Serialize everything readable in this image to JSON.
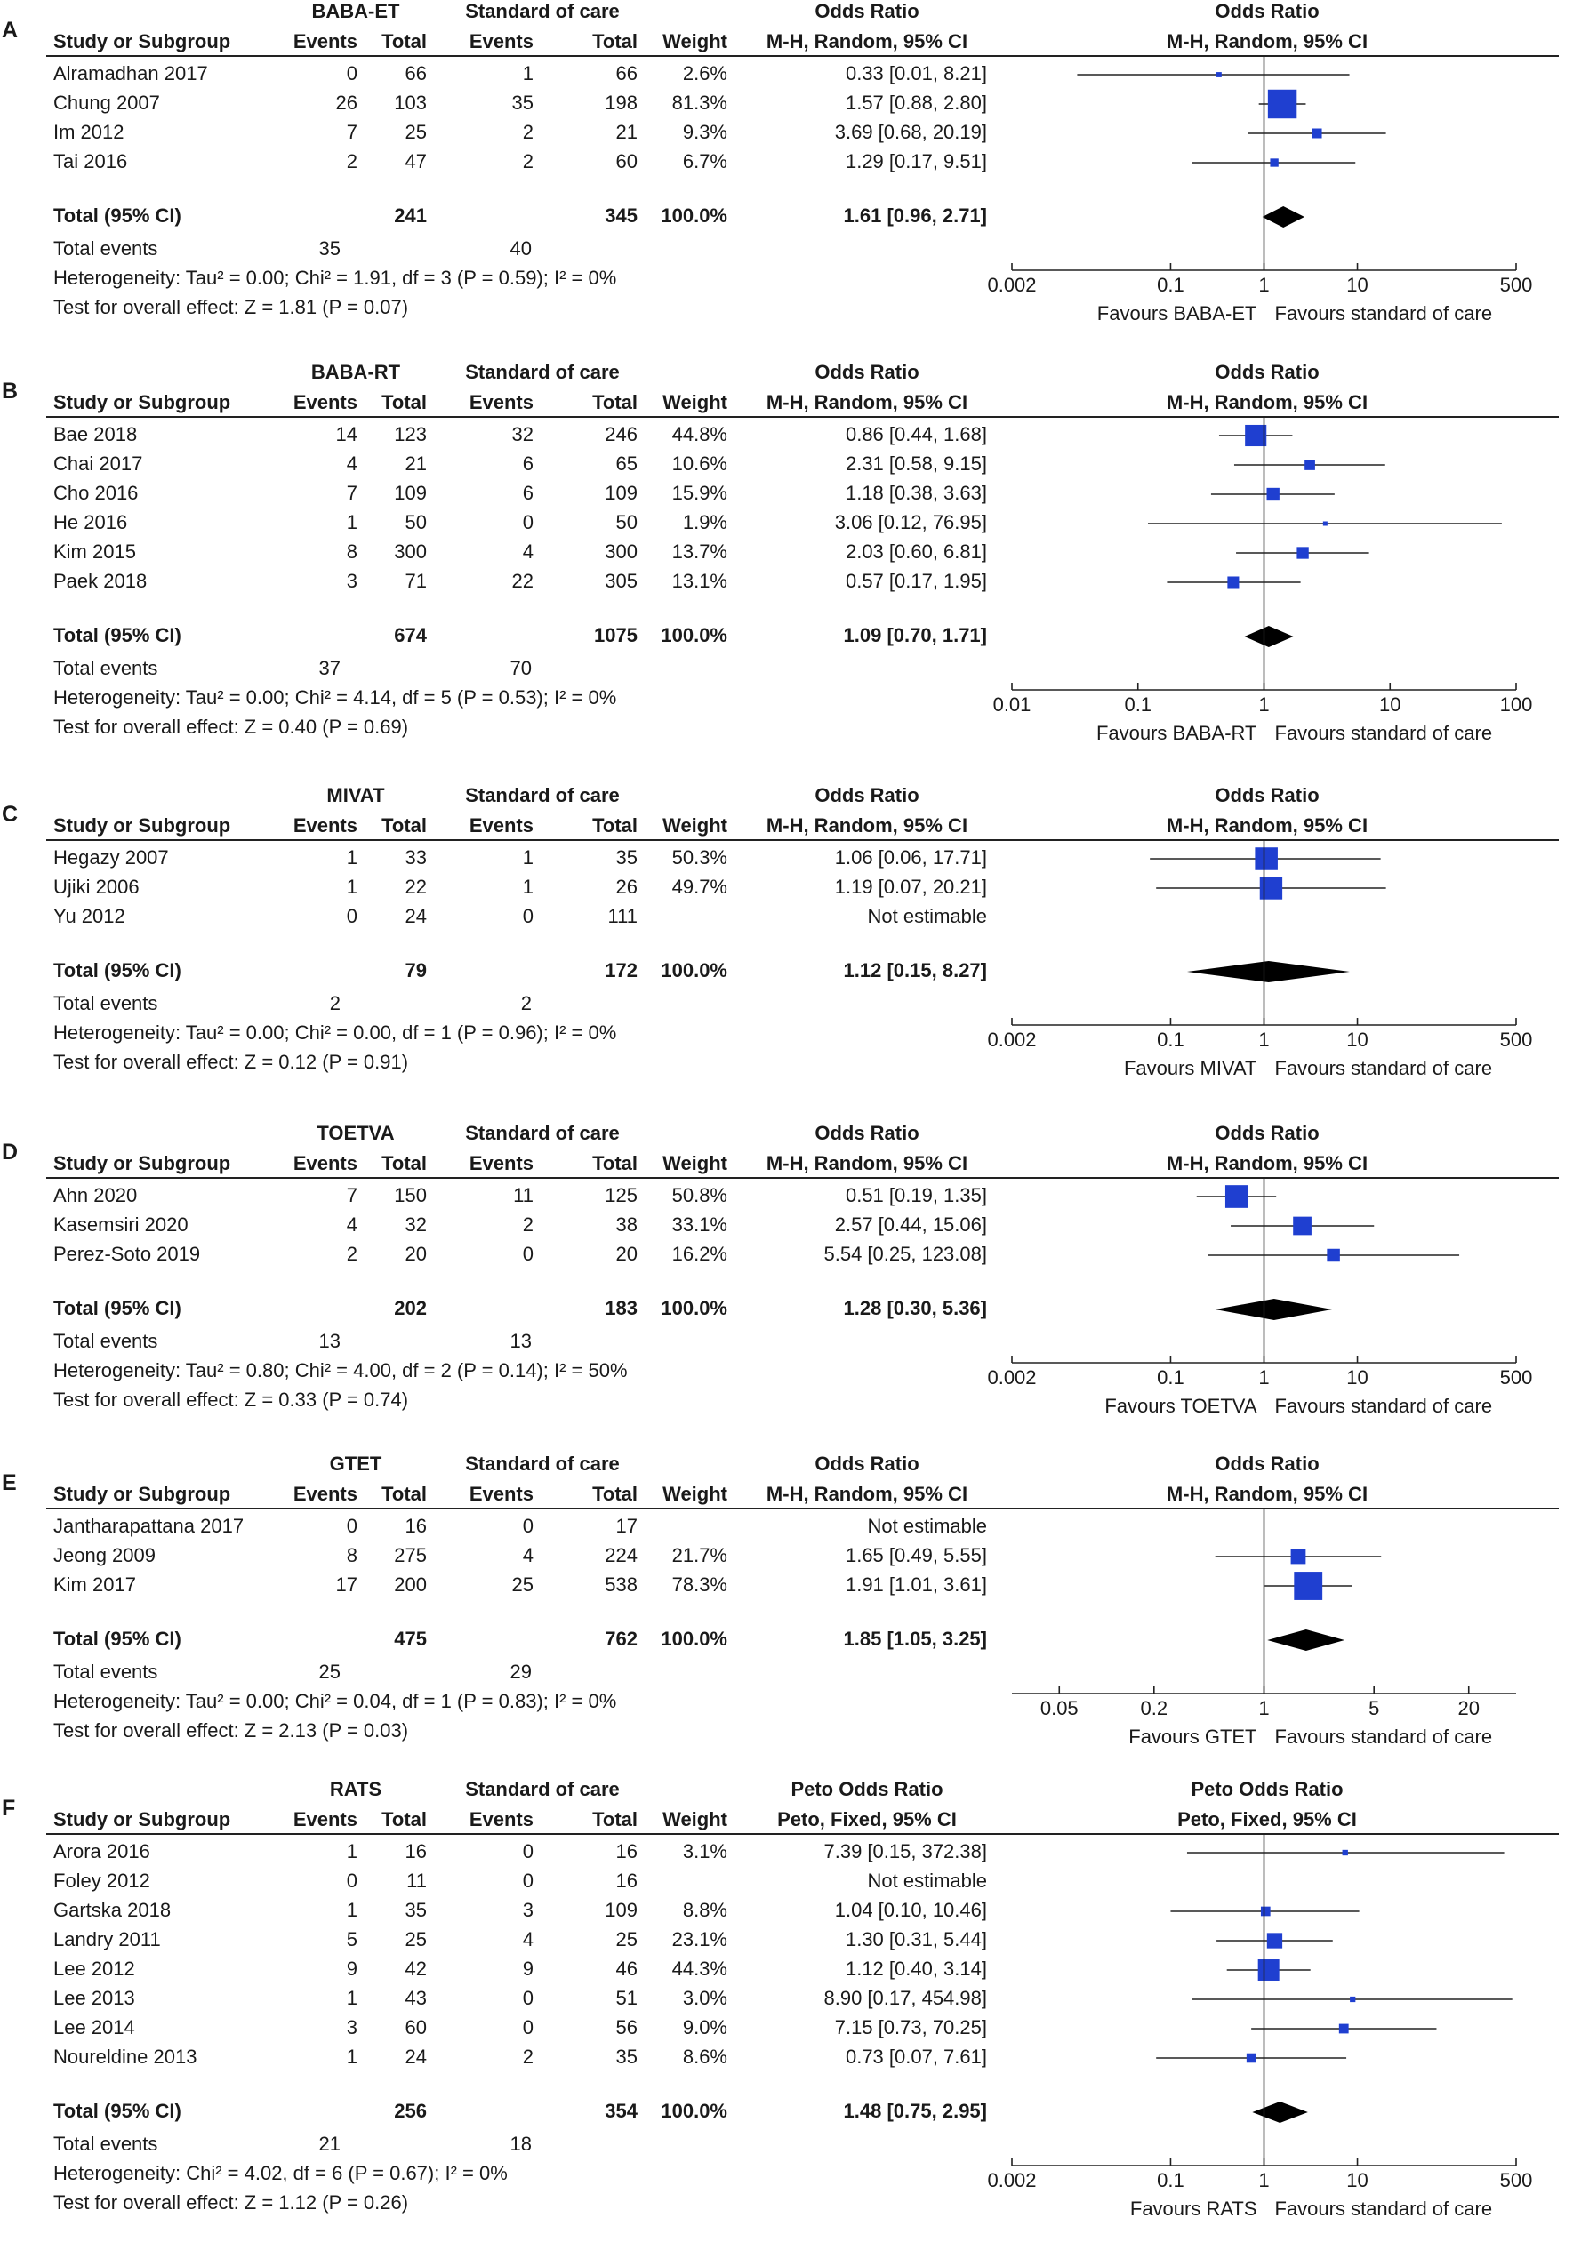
{
  "chart_data": [
    {
      "type": "forest",
      "panel": "A",
      "experimental_label": "BABA-ET",
      "control_label": "Standard of care",
      "effect_header": "Odds Ratio",
      "method": "M-H, Random, 95% CI",
      "columns": {
        "study": "Study or Subgroup",
        "events": "Events",
        "total": "Total",
        "weight": "Weight"
      },
      "studies": [
        {
          "name": "Alramadhan 2017",
          "e_events": "0",
          "e_total": "66",
          "c_events": "1",
          "c_total": "66",
          "weight": "2.6%",
          "ci_text": "0.33 [0.01, 8.21]",
          "or": 0.33,
          "lo": 0.01,
          "hi": 8.21,
          "w": 2.6
        },
        {
          "name": "Chung 2007",
          "e_events": "26",
          "e_total": "103",
          "c_events": "35",
          "c_total": "198",
          "weight": "81.3%",
          "ci_text": "1.57 [0.88, 2.80]",
          "or": 1.57,
          "lo": 0.88,
          "hi": 2.8,
          "w": 81.3
        },
        {
          "name": "Im 2012",
          "e_events": "7",
          "e_total": "25",
          "c_events": "2",
          "c_total": "21",
          "weight": "9.3%",
          "ci_text": "3.69 [0.68, 20.19]",
          "or": 3.69,
          "lo": 0.68,
          "hi": 20.19,
          "w": 9.3
        },
        {
          "name": "Tai 2016",
          "e_events": "2",
          "e_total": "47",
          "c_events": "2",
          "c_total": "60",
          "weight": "6.7%",
          "ci_text": "1.29 [0.17, 9.51]",
          "or": 1.29,
          "lo": 0.17,
          "hi": 9.51,
          "w": 6.7
        }
      ],
      "total": {
        "label": "Total (95% CI)",
        "e_total": "241",
        "c_total": "345",
        "weight": "100.0%",
        "ci_text": "1.61 [0.96, 2.71]",
        "or": 1.61,
        "lo": 0.96,
        "hi": 2.71
      },
      "total_events": {
        "label": "Total events",
        "e": "35",
        "c": "40"
      },
      "heterogeneity": "Heterogeneity: Tau² = 0.00; Chi² = 1.91, df = 3 (P = 0.59); I² = 0%",
      "overall": "Test for overall effect: Z = 1.81 (P = 0.07)",
      "axis": {
        "min": 0.002,
        "max": 500,
        "ticks": [
          "0.002",
          "0.1",
          "1",
          "10",
          "500"
        ]
      },
      "favours_left": "Favours BABA-ET",
      "favours_right": "Favours standard of care"
    },
    {
      "type": "forest",
      "panel": "B",
      "experimental_label": "BABA-RT",
      "control_label": "Standard of care",
      "effect_header": "Odds Ratio",
      "method": "M-H, Random, 95% CI",
      "columns": {
        "study": "Study or Subgroup",
        "events": "Events",
        "total": "Total",
        "weight": "Weight"
      },
      "studies": [
        {
          "name": "Bae 2018",
          "e_events": "14",
          "e_total": "123",
          "c_events": "32",
          "c_total": "246",
          "weight": "44.8%",
          "ci_text": "0.86 [0.44, 1.68]",
          "or": 0.86,
          "lo": 0.44,
          "hi": 1.68,
          "w": 44.8
        },
        {
          "name": "Chai 2017",
          "e_events": "4",
          "e_total": "21",
          "c_events": "6",
          "c_total": "65",
          "weight": "10.6%",
          "ci_text": "2.31 [0.58, 9.15]",
          "or": 2.31,
          "lo": 0.58,
          "hi": 9.15,
          "w": 10.6
        },
        {
          "name": "Cho 2016",
          "e_events": "7",
          "e_total": "109",
          "c_events": "6",
          "c_total": "109",
          "weight": "15.9%",
          "ci_text": "1.18 [0.38, 3.63]",
          "or": 1.18,
          "lo": 0.38,
          "hi": 3.63,
          "w": 15.9
        },
        {
          "name": "He 2016",
          "e_events": "1",
          "e_total": "50",
          "c_events": "0",
          "c_total": "50",
          "weight": "1.9%",
          "ci_text": "3.06 [0.12, 76.95]",
          "or": 3.06,
          "lo": 0.12,
          "hi": 76.95,
          "w": 1.9
        },
        {
          "name": "Kim 2015",
          "e_events": "8",
          "e_total": "300",
          "c_events": "4",
          "c_total": "300",
          "weight": "13.7%",
          "ci_text": "2.03 [0.60, 6.81]",
          "or": 2.03,
          "lo": 0.6,
          "hi": 6.81,
          "w": 13.7
        },
        {
          "name": "Paek 2018",
          "e_events": "3",
          "e_total": "71",
          "c_events": "22",
          "c_total": "305",
          "weight": "13.1%",
          "ci_text": "0.57 [0.17, 1.95]",
          "or": 0.57,
          "lo": 0.17,
          "hi": 1.95,
          "w": 13.1
        }
      ],
      "total": {
        "label": "Total (95% CI)",
        "e_total": "674",
        "c_total": "1075",
        "weight": "100.0%",
        "ci_text": "1.09 [0.70, 1.71]",
        "or": 1.09,
        "lo": 0.7,
        "hi": 1.71
      },
      "total_events": {
        "label": "Total events",
        "e": "37",
        "c": "70"
      },
      "heterogeneity": "Heterogeneity: Tau² = 0.00; Chi² = 4.14, df = 5 (P = 0.53); I² = 0%",
      "overall": "Test for overall effect: Z = 0.40 (P = 0.69)",
      "axis": {
        "min": 0.01,
        "max": 100,
        "ticks": [
          "0.01",
          "0.1",
          "1",
          "10",
          "100"
        ]
      },
      "favours_left": "Favours BABA-RT",
      "favours_right": "Favours standard of care"
    },
    {
      "type": "forest",
      "panel": "C",
      "experimental_label": "MIVAT",
      "control_label": "Standard of care",
      "effect_header": "Odds Ratio",
      "method": "M-H, Random, 95% CI",
      "columns": {
        "study": "Study or Subgroup",
        "events": "Events",
        "total": "Total",
        "weight": "Weight"
      },
      "studies": [
        {
          "name": "Hegazy 2007",
          "e_events": "1",
          "e_total": "33",
          "c_events": "1",
          "c_total": "35",
          "weight": "50.3%",
          "ci_text": "1.06 [0.06, 17.71]",
          "or": 1.06,
          "lo": 0.06,
          "hi": 17.71,
          "w": 50.3
        },
        {
          "name": "Ujiki 2006",
          "e_events": "1",
          "e_total": "22",
          "c_events": "1",
          "c_total": "26",
          "weight": "49.7%",
          "ci_text": "1.19 [0.07, 20.21]",
          "or": 1.19,
          "lo": 0.07,
          "hi": 20.21,
          "w": 49.7
        },
        {
          "name": "Yu 2012",
          "e_events": "0",
          "e_total": "24",
          "c_events": "0",
          "c_total": "111",
          "weight": "",
          "ci_text": "Not estimable",
          "or": null,
          "lo": null,
          "hi": null,
          "w": 0
        }
      ],
      "total": {
        "label": "Total (95% CI)",
        "e_total": "79",
        "c_total": "172",
        "weight": "100.0%",
        "ci_text": "1.12 [0.15, 8.27]",
        "or": 1.12,
        "lo": 0.15,
        "hi": 8.27
      },
      "total_events": {
        "label": "Total events",
        "e": "2",
        "c": "2"
      },
      "heterogeneity": "Heterogeneity: Tau² = 0.00; Chi² = 0.00, df = 1 (P = 0.96); I² = 0%",
      "overall": "Test for overall effect: Z = 0.12 (P = 0.91)",
      "axis": {
        "min": 0.002,
        "max": 500,
        "ticks": [
          "0.002",
          "0.1",
          "1",
          "10",
          "500"
        ]
      },
      "favours_left": "Favours MIVAT",
      "favours_right": "Favours standard of care"
    },
    {
      "type": "forest",
      "panel": "D",
      "experimental_label": "TOETVA",
      "control_label": "Standard of care",
      "effect_header": "Odds Ratio",
      "method": "M-H, Random, 95% CI",
      "columns": {
        "study": "Study or Subgroup",
        "events": "Events",
        "total": "Total",
        "weight": "Weight"
      },
      "studies": [
        {
          "name": "Ahn 2020",
          "e_events": "7",
          "e_total": "150",
          "c_events": "11",
          "c_total": "125",
          "weight": "50.8%",
          "ci_text": "0.51 [0.19, 1.35]",
          "or": 0.51,
          "lo": 0.19,
          "hi": 1.35,
          "w": 50.8
        },
        {
          "name": "Kasemsiri 2020",
          "e_events": "4",
          "e_total": "32",
          "c_events": "2",
          "c_total": "38",
          "weight": "33.1%",
          "ci_text": "2.57 [0.44, 15.06]",
          "or": 2.57,
          "lo": 0.44,
          "hi": 15.06,
          "w": 33.1
        },
        {
          "name": "Perez-Soto 2019",
          "e_events": "2",
          "e_total": "20",
          "c_events": "0",
          "c_total": "20",
          "weight": "16.2%",
          "ci_text": "5.54 [0.25, 123.08]",
          "or": 5.54,
          "lo": 0.25,
          "hi": 123.08,
          "w": 16.2
        }
      ],
      "total": {
        "label": "Total (95% CI)",
        "e_total": "202",
        "c_total": "183",
        "weight": "100.0%",
        "ci_text": "1.28 [0.30, 5.36]",
        "or": 1.28,
        "lo": 0.3,
        "hi": 5.36
      },
      "total_events": {
        "label": "Total events",
        "e": "13",
        "c": "13"
      },
      "heterogeneity": "Heterogeneity: Tau² = 0.80; Chi² = 4.00, df = 2 (P = 0.14); I² = 50%",
      "overall": "Test for overall effect: Z = 0.33 (P = 0.74)",
      "axis": {
        "min": 0.002,
        "max": 500,
        "ticks": [
          "0.002",
          "0.1",
          "1",
          "10",
          "500"
        ]
      },
      "favours_left": "Favours TOETVA",
      "favours_right": "Favours standard of care"
    },
    {
      "type": "forest",
      "panel": "E",
      "experimental_label": "GTET",
      "control_label": "Standard of care",
      "effect_header": "Odds Ratio",
      "method": "M-H, Random, 95% CI",
      "columns": {
        "study": "Study or Subgroup",
        "events": "Events",
        "total": "Total",
        "weight": "Weight"
      },
      "studies": [
        {
          "name": "Jantharapattana 2017",
          "e_events": "0",
          "e_total": "16",
          "c_events": "0",
          "c_total": "17",
          "weight": "",
          "ci_text": "Not estimable",
          "or": null,
          "lo": null,
          "hi": null,
          "w": 0
        },
        {
          "name": "Jeong 2009",
          "e_events": "8",
          "e_total": "275",
          "c_events": "4",
          "c_total": "224",
          "weight": "21.7%",
          "ci_text": "1.65 [0.49, 5.55]",
          "or": 1.65,
          "lo": 0.49,
          "hi": 5.55,
          "w": 21.7
        },
        {
          "name": "Kim 2017",
          "e_events": "17",
          "e_total": "200",
          "c_events": "25",
          "c_total": "538",
          "weight": "78.3%",
          "ci_text": "1.91 [1.01, 3.61]",
          "or": 1.91,
          "lo": 1.01,
          "hi": 3.61,
          "w": 78.3
        }
      ],
      "total": {
        "label": "Total (95% CI)",
        "e_total": "475",
        "c_total": "762",
        "weight": "100.0%",
        "ci_text": "1.85 [1.05, 3.25]",
        "or": 1.85,
        "lo": 1.05,
        "hi": 3.25
      },
      "total_events": {
        "label": "Total events",
        "e": "25",
        "c": "29"
      },
      "heterogeneity": "Heterogeneity: Tau² = 0.00; Chi² = 0.04, df = 1 (P = 0.83); I² = 0%",
      "overall": "Test for overall effect: Z = 2.13 (P = 0.03)",
      "axis": {
        "min": 0.025,
        "max": 40,
        "ticks": [
          "0.05",
          "0.2",
          "1",
          "5",
          "20"
        ]
      },
      "favours_left": "Favours GTET",
      "favours_right": "Favours standard of care"
    },
    {
      "type": "forest",
      "panel": "F",
      "experimental_label": "RATS",
      "control_label": "Standard of care",
      "effect_header": "Peto Odds Ratio",
      "method": "Peto, Fixed, 95% CI",
      "columns": {
        "study": "Study or Subgroup",
        "events": "Events",
        "total": "Total",
        "weight": "Weight"
      },
      "studies": [
        {
          "name": "Arora 2016",
          "e_events": "1",
          "e_total": "16",
          "c_events": "0",
          "c_total": "16",
          "weight": "3.1%",
          "ci_text": "7.39 [0.15, 372.38]",
          "or": 7.39,
          "lo": 0.15,
          "hi": 372.38,
          "w": 3.1
        },
        {
          "name": "Foley 2012",
          "e_events": "0",
          "e_total": "11",
          "c_events": "0",
          "c_total": "16",
          "weight": "",
          "ci_text": "Not estimable",
          "or": null,
          "lo": null,
          "hi": null,
          "w": 0
        },
        {
          "name": "Gartska 2018",
          "e_events": "1",
          "e_total": "35",
          "c_events": "3",
          "c_total": "109",
          "weight": "8.8%",
          "ci_text": "1.04 [0.10, 10.46]",
          "or": 1.04,
          "lo": 0.1,
          "hi": 10.46,
          "w": 8.8
        },
        {
          "name": "Landry 2011",
          "e_events": "5",
          "e_total": "25",
          "c_events": "4",
          "c_total": "25",
          "weight": "23.1%",
          "ci_text": "1.30 [0.31, 5.44]",
          "or": 1.3,
          "lo": 0.31,
          "hi": 5.44,
          "w": 23.1
        },
        {
          "name": "Lee 2012",
          "e_events": "9",
          "e_total": "42",
          "c_events": "9",
          "c_total": "46",
          "weight": "44.3%",
          "ci_text": "1.12 [0.40, 3.14]",
          "or": 1.12,
          "lo": 0.4,
          "hi": 3.14,
          "w": 44.3
        },
        {
          "name": "Lee 2013",
          "e_events": "1",
          "e_total": "43",
          "c_events": "0",
          "c_total": "51",
          "weight": "3.0%",
          "ci_text": "8.90 [0.17, 454.98]",
          "or": 8.9,
          "lo": 0.17,
          "hi": 454.98,
          "w": 3.0
        },
        {
          "name": "Lee 2014",
          "e_events": "3",
          "e_total": "60",
          "c_events": "0",
          "c_total": "56",
          "weight": "9.0%",
          "ci_text": "7.15 [0.73, 70.25]",
          "or": 7.15,
          "lo": 0.73,
          "hi": 70.25,
          "w": 9.0
        },
        {
          "name": "Noureldine 2013",
          "e_events": "1",
          "e_total": "24",
          "c_events": "2",
          "c_total": "35",
          "weight": "8.6%",
          "ci_text": "0.73 [0.07, 7.61]",
          "or": 0.73,
          "lo": 0.07,
          "hi": 7.61,
          "w": 8.6
        }
      ],
      "total": {
        "label": "Total (95% CI)",
        "e_total": "256",
        "c_total": "354",
        "weight": "100.0%",
        "ci_text": "1.48 [0.75, 2.95]",
        "or": 1.48,
        "lo": 0.75,
        "hi": 2.95
      },
      "total_events": {
        "label": "Total events",
        "e": "21",
        "c": "18"
      },
      "heterogeneity": "Heterogeneity: Chi² = 4.02, df = 6 (P = 0.67); I² = 0%",
      "overall": "Test for overall effect: Z = 1.12 (P = 0.26)",
      "axis": {
        "min": 0.002,
        "max": 500,
        "ticks": [
          "0.002",
          "0.1",
          "1",
          "10",
          "500"
        ]
      },
      "favours_left": "Favours RATS",
      "favours_right": "Favours standard of care"
    }
  ],
  "colors": {
    "marker": "#1f3fd0",
    "line": "#222222",
    "diamond": "#000000"
  }
}
